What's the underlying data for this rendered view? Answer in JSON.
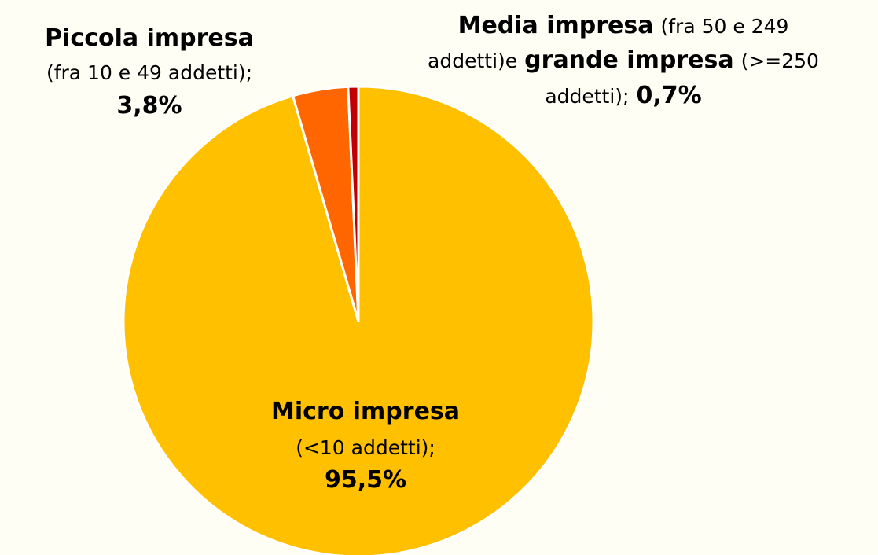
{
  "chart_data": {
    "type": "pie",
    "categories": [
      "Micro impresa",
      "Piccola impresa",
      "Media impresa"
    ],
    "values": [
      95.5,
      3.8,
      0.7
    ],
    "value_labels": [
      "95,5%",
      "3,8%",
      "0,7%"
    ],
    "colors": [
      "#FFC000",
      "#FF6600",
      "#C00000"
    ],
    "labels": [
      {
        "lines": [
          [
            {
              "text": "Micro impresa",
              "bold": true
            }
          ],
          [
            {
              "text": "(<10 addetti);",
              "bold": false
            }
          ]
        ],
        "value_inline": false
      },
      {
        "lines": [
          [
            {
              "text": "Piccola impresa",
              "bold": true
            }
          ],
          [
            {
              "text": "(fra 10 e 49 addetti);",
              "bold": false
            }
          ]
        ],
        "value_inline": false
      },
      {
        "lines": [
          [
            {
              "text": "Media impresa",
              "bold": true
            },
            {
              "text": "(fra 50 e 249",
              "bold": false
            }
          ],
          [
            {
              "text": "addetti)e",
              "bold": false
            },
            {
              "text": "grande impresa",
              "bold": true
            },
            {
              "text": "(>=250",
              "bold": false
            }
          ],
          [
            {
              "text": "addetti);",
              "bold": false
            }
          ]
        ],
        "value_inline": true
      }
    ]
  }
}
